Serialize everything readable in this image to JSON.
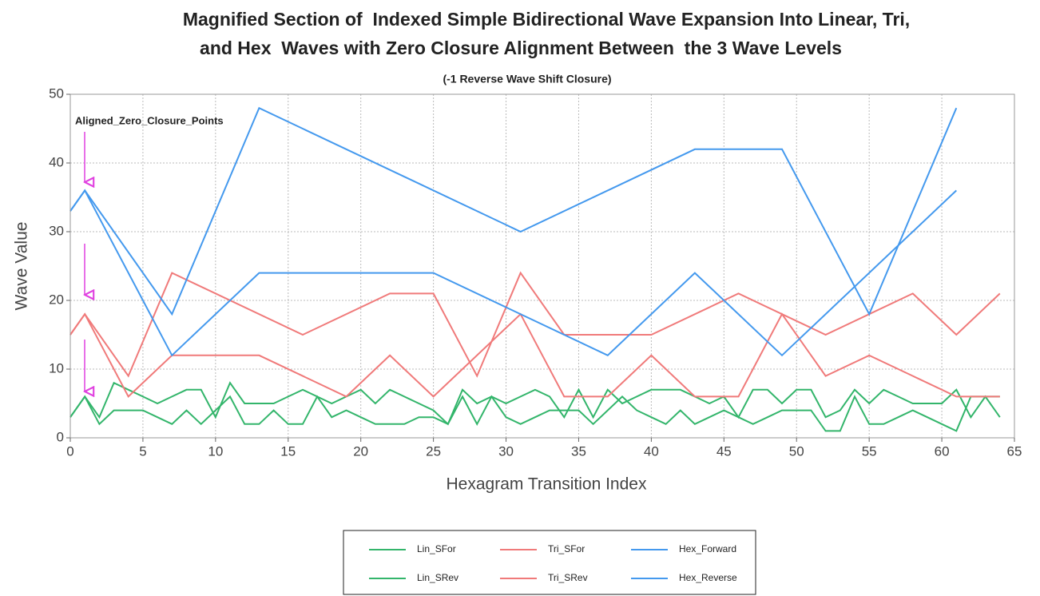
{
  "chart_data": {
    "type": "line",
    "title": [
      "Magnified Section of  Indexed Simple Bidirectional Wave Expansion Into Linear, Tri,",
      "and Hex  Waves with Zero Closure Alignment Between  the 3 Wave Levels"
    ],
    "subtitle": "(-1 Reverse Wave Shift Closure)",
    "annotation": "Aligned_Zero_Closure_Points",
    "xlabel": "Hexagram Transition Index",
    "ylabel": "Wave Value",
    "xlim": [
      0,
      65
    ],
    "xticks": [
      0,
      5,
      10,
      15,
      20,
      25,
      30,
      35,
      40,
      45,
      50,
      55,
      60,
      65
    ],
    "ylim": [
      0,
      50
    ],
    "yticks": [
      0,
      10,
      20,
      30,
      40,
      50
    ],
    "grid": true,
    "series": [
      {
        "name": "Lin_SFor",
        "color": "#33b56b",
        "x": [
          0,
          1,
          2,
          3,
          4,
          5,
          6,
          7,
          8,
          9,
          10,
          11,
          12,
          13,
          14,
          15,
          16,
          17,
          18,
          19,
          20,
          21,
          22,
          23,
          24,
          25,
          26,
          27,
          28,
          29,
          30,
          31,
          32,
          33,
          34,
          35,
          36,
          37,
          38,
          39,
          40,
          41,
          42,
          43,
          44,
          45,
          46,
          47,
          48,
          49,
          50,
          51,
          52,
          53,
          54,
          55,
          56,
          57,
          58,
          59,
          60,
          61,
          62,
          63,
          64
        ],
        "values": [
          3,
          6,
          3,
          8,
          7,
          6,
          5,
          6,
          7,
          7,
          3,
          8,
          5,
          5,
          5,
          6,
          7,
          6,
          5,
          6,
          7,
          5,
          7,
          6,
          5,
          4,
          2,
          7,
          5,
          6,
          5,
          6,
          7,
          6,
          3,
          7,
          3,
          7,
          5,
          6,
          7,
          7,
          7,
          6,
          5,
          6,
          3,
          7,
          7,
          5,
          7,
          7,
          3,
          4,
          7,
          5,
          7,
          6,
          5,
          5,
          5,
          7,
          3,
          6,
          3
        ]
      },
      {
        "name": "Lin_SRev",
        "color": "#33b56b",
        "x": [
          0,
          1,
          2,
          3,
          4,
          5,
          6,
          7,
          8,
          9,
          10,
          11,
          12,
          13,
          14,
          15,
          16,
          17,
          18,
          19,
          20,
          21,
          22,
          23,
          24,
          25,
          26,
          27,
          28,
          29,
          30,
          31,
          32,
          33,
          34,
          35,
          36,
          37,
          38,
          39,
          40,
          41,
          42,
          43,
          44,
          45,
          46,
          47,
          48,
          49,
          50,
          51,
          52,
          53,
          54,
          55,
          56,
          57,
          58,
          59,
          60,
          61,
          62,
          63,
          64
        ],
        "values": [
          3,
          6,
          2,
          4,
          4,
          4,
          3,
          2,
          4,
          2,
          4,
          6,
          2,
          2,
          4,
          2,
          2,
          6,
          3,
          4,
          3,
          2,
          2,
          2,
          3,
          3,
          2,
          6,
          2,
          6,
          3,
          2,
          3,
          4,
          4,
          4,
          2,
          4,
          6,
          4,
          3,
          2,
          4,
          2,
          3,
          4,
          3,
          2,
          3,
          4,
          4,
          4,
          1,
          1,
          6,
          2,
          2,
          3,
          4,
          3,
          2,
          1,
          6,
          6,
          6
        ]
      },
      {
        "name": "Tri_SFor",
        "color": "#f07a7a",
        "x": [
          0,
          1,
          4,
          7,
          16,
          22,
          25,
          28,
          31,
          34,
          40,
          46,
          52,
          58,
          61,
          64
        ],
        "values": [
          15,
          18,
          9,
          24,
          15,
          21,
          21,
          9,
          24,
          15,
          15,
          21,
          15,
          21,
          15,
          21
        ]
      },
      {
        "name": "Tri_SRev",
        "color": "#f07a7a",
        "x": [
          0,
          1,
          4,
          7,
          13,
          19,
          22,
          25,
          31,
          34,
          37,
          40,
          43,
          46,
          49,
          52,
          55,
          61,
          64
        ],
        "values": [
          15,
          18,
          6,
          12,
          12,
          6,
          12,
          6,
          18,
          6,
          6,
          12,
          6,
          6,
          18,
          9,
          12,
          6,
          6
        ]
      },
      {
        "name": "Hex_Forward",
        "color": "#4499ee",
        "x": [
          0,
          1,
          7,
          13,
          31,
          43,
          49,
          55,
          61
        ],
        "values": [
          33,
          36,
          18,
          48,
          30,
          42,
          42,
          18,
          48
        ]
      },
      {
        "name": "Hex_Reverse",
        "color": "#4499ee",
        "x": [
          0,
          1,
          7,
          13,
          25,
          37,
          43,
          49,
          61
        ],
        "values": [
          33,
          36,
          12,
          24,
          24,
          12,
          24,
          12,
          36
        ]
      }
    ]
  }
}
